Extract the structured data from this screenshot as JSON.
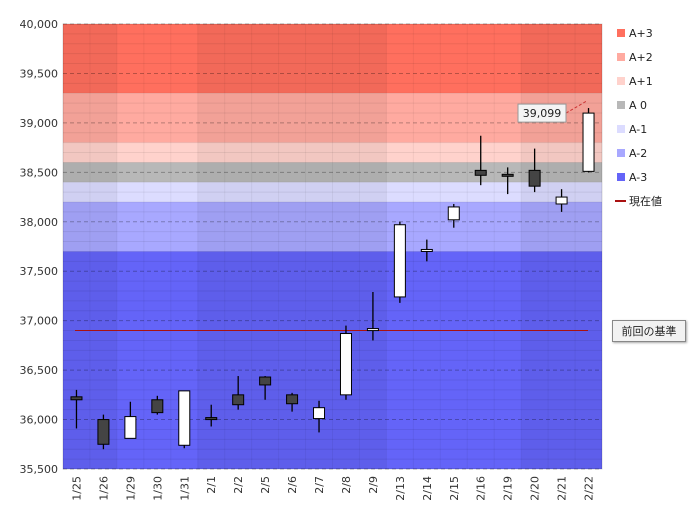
{
  "chart_data": {
    "type": "candlestick",
    "ylim": [
      35500,
      40000
    ],
    "yticks": [
      "35,500",
      "36,000",
      "36,500",
      "37,000",
      "37,500",
      "38,000",
      "38,500",
      "39,000",
      "39,500",
      "40,000"
    ],
    "ytick_values": [
      35500,
      36000,
      36500,
      37000,
      37500,
      38000,
      38500,
      39000,
      39500,
      40000
    ],
    "categories": [
      "1/25",
      "1/26",
      "1/29",
      "1/30",
      "1/31",
      "2/1",
      "2/2",
      "2/5",
      "2/6",
      "2/7",
      "2/8",
      "2/9",
      "2/13",
      "2/14",
      "2/15",
      "2/16",
      "2/19",
      "2/20",
      "2/21",
      "2/22"
    ],
    "candles": [
      {
        "date": "1/25",
        "open": 36230,
        "high": 36300,
        "low": 35910,
        "close": 36200
      },
      {
        "date": "1/26",
        "open": 36000,
        "high": 36050,
        "low": 35700,
        "close": 35750
      },
      {
        "date": "1/29",
        "open": 35810,
        "high": 36180,
        "low": 35810,
        "close": 36030
      },
      {
        "date": "1/30",
        "open": 36200,
        "high": 36240,
        "low": 36050,
        "close": 36070
      },
      {
        "date": "1/31",
        "open": 35740,
        "high": 36290,
        "low": 35710,
        "close": 36290
      },
      {
        "date": "2/1",
        "open": 36020,
        "high": 36150,
        "low": 35930,
        "close": 36010
      },
      {
        "date": "2/2",
        "open": 36250,
        "high": 36440,
        "low": 36100,
        "close": 36150
      },
      {
        "date": "2/5",
        "open": 36430,
        "high": 36440,
        "low": 36200,
        "close": 36350
      },
      {
        "date": "2/6",
        "open": 36250,
        "high": 36270,
        "low": 36080,
        "close": 36160
      },
      {
        "date": "2/7",
        "open": 36010,
        "high": 36190,
        "low": 35870,
        "close": 36120
      },
      {
        "date": "2/8",
        "open": 36250,
        "high": 36950,
        "low": 36200,
        "close": 36870
      },
      {
        "date": "2/9",
        "open": 36900,
        "high": 37290,
        "low": 36800,
        "close": 36920
      },
      {
        "date": "2/13",
        "open": 37240,
        "high": 38000,
        "low": 37180,
        "close": 37970
      },
      {
        "date": "2/14",
        "open": 37700,
        "high": 37820,
        "low": 37600,
        "close": 37720
      },
      {
        "date": "2/15",
        "open": 38020,
        "high": 38180,
        "low": 37940,
        "close": 38150
      },
      {
        "date": "2/16",
        "open": 38520,
        "high": 38870,
        "low": 38370,
        "close": 38470
      },
      {
        "date": "2/19",
        "open": 38480,
        "high": 38550,
        "low": 38280,
        "close": 38460
      },
      {
        "date": "2/20",
        "open": 38520,
        "high": 38740,
        "low": 38300,
        "close": 38360
      },
      {
        "date": "2/21",
        "open": 38180,
        "high": 38330,
        "low": 38100,
        "close": 38250
      },
      {
        "date": "2/22",
        "open": 38510,
        "high": 39150,
        "low": 38500,
        "close": 39099
      }
    ],
    "bands": [
      {
        "label": "A+3",
        "from": 39300,
        "to": 40000,
        "color": "#ff6f5e"
      },
      {
        "label": "A+2",
        "from": 38800,
        "to": 39300,
        "color": "#ffaaa0"
      },
      {
        "label": "A+1",
        "from": 38600,
        "to": 38800,
        "color": "#ffd2cc"
      },
      {
        "label": "A 0",
        "from": 38400,
        "to": 38600,
        "color": "#b8b8b8"
      },
      {
        "label": "A-1",
        "from": 38200,
        "to": 38400,
        "color": "#dcdcff"
      },
      {
        "label": "A-2",
        "from": 37700,
        "to": 38200,
        "color": "#a8a8ff"
      },
      {
        "label": "A-3",
        "from": 35500,
        "to": 37700,
        "color": "#6464f8"
      }
    ],
    "reference_line": {
      "value": 36900,
      "color": "#aa1111",
      "label": "前回の基準"
    },
    "current_value": {
      "value": 39099,
      "label": "39,099"
    },
    "legend": [
      {
        "label": "A+3",
        "color": "#ff6f5e",
        "kind": "box"
      },
      {
        "label": "A+2",
        "color": "#ffaaa0",
        "kind": "box"
      },
      {
        "label": "A+1",
        "color": "#ffd2cc",
        "kind": "box"
      },
      {
        "label": "A 0",
        "color": "#b8b8b8",
        "kind": "box"
      },
      {
        "label": "A-1",
        "color": "#dcdcff",
        "kind": "box"
      },
      {
        "label": "A-2",
        "color": "#a8a8ff",
        "kind": "box"
      },
      {
        "label": "A-3",
        "color": "#6464f8",
        "kind": "box"
      },
      {
        "label": "現在値",
        "color": "#aa1111",
        "kind": "line"
      }
    ],
    "legend_position": "right",
    "grid": true
  }
}
